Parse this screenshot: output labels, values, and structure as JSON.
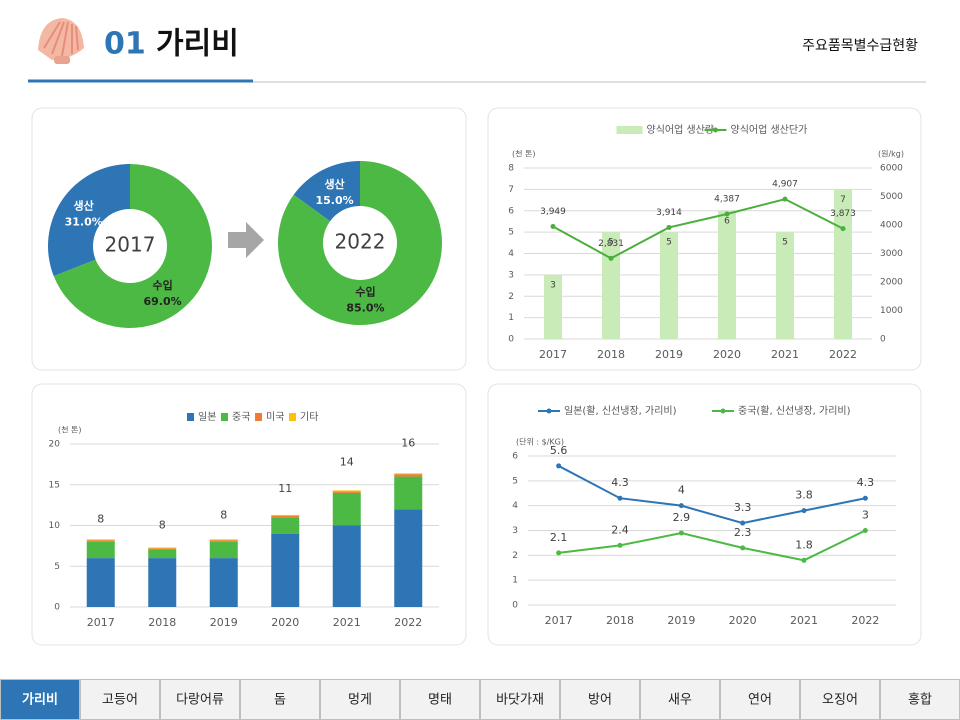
{
  "header": {
    "number": "01",
    "title": "가리비",
    "subtitle": "주요품목별수급현황"
  },
  "nav": {
    "tabs": [
      "가리비",
      "고등어",
      "다랑어류",
      "돔",
      "멍게",
      "명태",
      "바닷가재",
      "방어",
      "새우",
      "연어",
      "오징어",
      "홍합"
    ],
    "active": 0
  },
  "chart_data": [
    {
      "type": "pie",
      "center_label": "2017",
      "categories": [
        "생산",
        "수입"
      ],
      "values": [
        31.0,
        69.0
      ],
      "value_labels": [
        "31.0%",
        "69.0%"
      ],
      "colors": [
        "#2e75b6",
        "#4cb944"
      ]
    },
    {
      "type": "pie",
      "center_label": "2022",
      "categories": [
        "생산",
        "수입"
      ],
      "values": [
        15.0,
        85.0
      ],
      "value_labels": [
        "15.0%",
        "85.0%"
      ],
      "colors": [
        "#2e75b6",
        "#4cb944"
      ]
    },
    {
      "type": "bar",
      "categories": [
        "2017",
        "2018",
        "2019",
        "2020",
        "2021",
        "2022"
      ],
      "y_label": "(천 톤)",
      "y2_label": "(원/kg)",
      "ylim": [
        0,
        8
      ],
      "yticks": [
        0,
        1,
        2,
        3,
        4,
        5,
        6,
        7,
        8
      ],
      "y2lim": [
        0,
        6000
      ],
      "y2ticks": [
        0,
        1000,
        2000,
        3000,
        4000,
        5000,
        6000
      ],
      "grid": true,
      "series": [
        {
          "name": "양식어업 생산량",
          "type": "bar",
          "color": "#c9ebb7",
          "values": [
            3,
            5,
            5,
            6,
            5,
            7
          ]
        },
        {
          "name": "양식어업 생산단가",
          "type": "line",
          "axis": "y2",
          "color": "#4cae3c",
          "values": [
            3949,
            2831,
            3914,
            4387,
            4907,
            3873
          ],
          "value_labels": [
            "3,949",
            "2,831",
            "3,914",
            "4,387",
            "4,907",
            "3,873"
          ]
        }
      ]
    },
    {
      "type": "bar",
      "stacked": true,
      "categories": [
        "2017",
        "2018",
        "2019",
        "2020",
        "2021",
        "2022"
      ],
      "y_label": "(천 톤)",
      "ylim": [
        0,
        20
      ],
      "yticks": [
        0,
        5,
        10,
        15,
        20
      ],
      "grid": true,
      "total_labels": [
        8,
        8,
        8,
        11,
        14,
        16
      ],
      "series": [
        {
          "name": "일본",
          "type": "bar",
          "color": "#2e75b6",
          "values": [
            6,
            6,
            6,
            9,
            10,
            12
          ]
        },
        {
          "name": "중국",
          "type": "bar",
          "color": "#4cb944",
          "values": [
            2,
            1,
            2,
            2,
            4,
            4
          ]
        },
        {
          "name": "미국",
          "type": "bar",
          "color": "#ed7d31",
          "values": [
            0.2,
            0.2,
            0.2,
            0.2,
            0.2,
            0.3
          ]
        },
        {
          "name": "기타",
          "type": "bar",
          "color": "#ffc000",
          "values": [
            0.1,
            0.1,
            0.1,
            0.1,
            0.1,
            0.1
          ]
        }
      ]
    },
    {
      "type": "line",
      "categories": [
        "2017",
        "2018",
        "2019",
        "2020",
        "2021",
        "2022"
      ],
      "y_label": "(단위 : $/KG)",
      "ylim": [
        0,
        6
      ],
      "yticks": [
        0,
        1,
        2,
        3,
        4,
        5,
        6
      ],
      "grid": true,
      "series": [
        {
          "name": "일본(활, 신선냉장, 가리비)",
          "type": "line",
          "color": "#2e75b6",
          "values": [
            5.6,
            4.3,
            4,
            3.3,
            3.8,
            4.3
          ]
        },
        {
          "name": "중국(활, 신선냉장, 가리비)",
          "type": "line",
          "color": "#4cb944",
          "values": [
            2.1,
            2.4,
            2.9,
            2.3,
            1.8,
            3
          ]
        }
      ]
    }
  ]
}
